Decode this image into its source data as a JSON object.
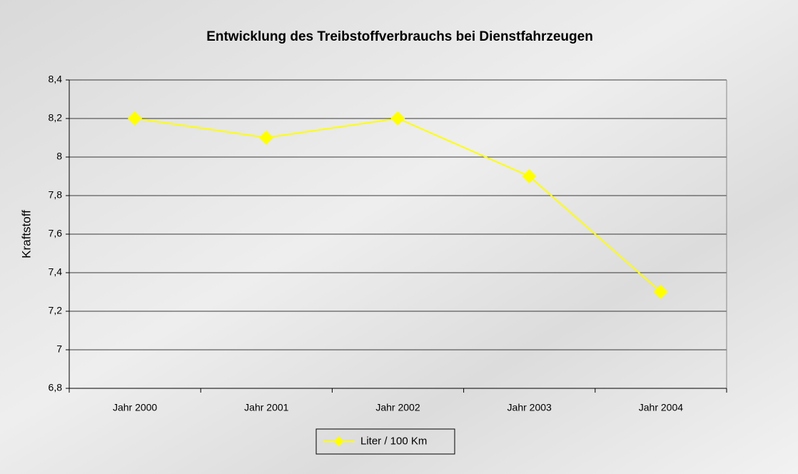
{
  "chart_data": {
    "type": "line",
    "title": "Entwicklung des Treibstoffverbrauchs bei Dienstfahrzeugen",
    "y_label": "Kraftstoff",
    "categories": [
      "Jahr 2000",
      "Jahr 2001",
      "Jahr 2002",
      "Jahr 2003",
      "Jahr 2004"
    ],
    "series": [
      {
        "name": "Liter / 100 Km",
        "color": "#ffff00",
        "values": [
          8.2,
          8.1,
          8.2,
          7.9,
          7.3
        ]
      }
    ],
    "ylim": [
      6.8,
      8.4
    ],
    "yticks": [
      {
        "value": 6.8,
        "label": "6,8"
      },
      7,
      {
        "value": 7.2,
        "label": "7,2"
      },
      {
        "value": 7.4,
        "label": "7,4"
      },
      {
        "value": 7.6,
        "label": "7,6"
      },
      {
        "value": 7.8,
        "label": "7,8"
      },
      8,
      {
        "value": 8.2,
        "label": "8,2"
      },
      {
        "value": 8.4,
        "label": "8,4"
      }
    ],
    "grid": true,
    "legend": "bottom"
  }
}
